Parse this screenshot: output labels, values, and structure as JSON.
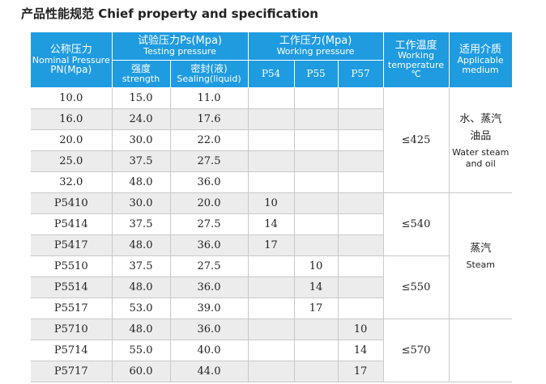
{
  "title": "产品性能规范 Chief property and specification",
  "header": {
    "nominal_cn": "公称压力",
    "nominal_en": "Nominal Pressure",
    "nominal_unit": "PN(Mpa)",
    "testing_cn": "试验压力Ps(Mpa)",
    "testing_en": "Testing pressure",
    "strength_cn": "强度",
    "strength_en": "strength",
    "sealing_cn": "密封(液)",
    "sealing_en": "Sealing(liquid)",
    "working_cn": "工作压力(Mpa)",
    "working_en": "Working pressure",
    "p54": "P54",
    "p55": "P55",
    "p57": "P57",
    "temp_cn": "工作温度",
    "temp_en": "Working temperature",
    "temp_unit": "℃",
    "medium_cn": "适用介质",
    "medium_en": "Applicable medium"
  },
  "rows": [
    {
      "pn": "10.0",
      "strength": "15.0",
      "sealing": "11.0",
      "p54": "",
      "p55": "",
      "p57": ""
    },
    {
      "pn": "16.0",
      "strength": "24.0",
      "sealing": "17.6",
      "p54": "",
      "p55": "",
      "p57": ""
    },
    {
      "pn": "20.0",
      "strength": "30.0",
      "sealing": "22.0",
      "p54": "",
      "p55": "",
      "p57": ""
    },
    {
      "pn": "25.0",
      "strength": "37.5",
      "sealing": "27.5",
      "p54": "",
      "p55": "",
      "p57": ""
    },
    {
      "pn": "32.0",
      "strength": "48.0",
      "sealing": "36.0",
      "p54": "",
      "p55": "",
      "p57": ""
    },
    {
      "pn": "P5410",
      "strength": "30.0",
      "sealing": "20.0",
      "p54": "10",
      "p55": "",
      "p57": ""
    },
    {
      "pn": "P5414",
      "strength": "37.5",
      "sealing": "27.5",
      "p54": "14",
      "p55": "",
      "p57": ""
    },
    {
      "pn": "P5417",
      "strength": "48.0",
      "sealing": "36.0",
      "p54": "17",
      "p55": "",
      "p57": ""
    },
    {
      "pn": "P5510",
      "strength": "37.5",
      "sealing": "27.5",
      "p54": "",
      "p55": "10",
      "p57": ""
    },
    {
      "pn": "P5514",
      "strength": "48.0",
      "sealing": "36.0",
      "p54": "",
      "p55": "14",
      "p57": ""
    },
    {
      "pn": "P5517",
      "strength": "53.0",
      "sealing": "39.0",
      "p54": "",
      "p55": "17",
      "p57": ""
    },
    {
      "pn": "P5710",
      "strength": "48.0",
      "sealing": "36.0",
      "p54": "",
      "p55": "",
      "p57": "10"
    },
    {
      "pn": "P5714",
      "strength": "55.0",
      "sealing": "40.0",
      "p54": "",
      "p55": "",
      "p57": "14"
    },
    {
      "pn": "P5717",
      "strength": "60.0",
      "sealing": "44.0",
      "p54": "",
      "p55": "",
      "p57": "17"
    }
  ],
  "temps": [
    "≤425",
    "≤540",
    "≤550",
    "≤570"
  ],
  "media": {
    "group1_cn_a": "水、蒸汽",
    "group1_cn_b": "油品",
    "group1_en": "Water steam and oil",
    "group2_cn": "蒸汽",
    "group2_en": "Steam"
  },
  "colors": {
    "header_bg": "#1f9be0",
    "row_gray": "#ececec"
  }
}
